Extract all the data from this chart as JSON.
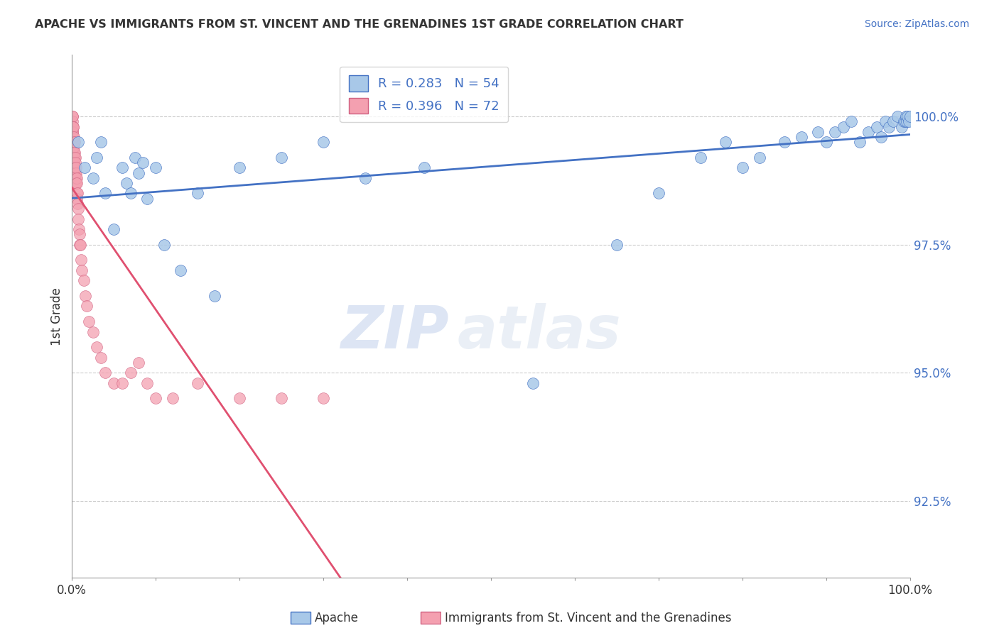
{
  "title": "APACHE VS IMMIGRANTS FROM ST. VINCENT AND THE GRENADINES 1ST GRADE CORRELATION CHART",
  "source": "Source: ZipAtlas.com",
  "ylabel": "1st Grade",
  "y_tick_labels": [
    "92.5%",
    "95.0%",
    "97.5%",
    "100.0%"
  ],
  "y_tick_values": [
    92.5,
    95.0,
    97.5,
    100.0
  ],
  "xlim": [
    0.0,
    100.0
  ],
  "ylim": [
    91.0,
    101.2
  ],
  "legend_apache_R": "R = 0.283",
  "legend_apache_N": "N = 54",
  "legend_svg_R": "R = 0.396",
  "legend_svg_N": "N = 72",
  "apache_color": "#a8c8e8",
  "svg_color": "#f4a0b0",
  "trendline_apache_color": "#4472c4",
  "trendline_svg_color": "#e05070",
  "legend_label_apache": "Apache",
  "legend_label_svg": "Immigrants from St. Vincent and the Grenadines",
  "watermark_zip": "ZIP",
  "watermark_atlas": "atlas",
  "apache_x": [
    0.8,
    1.5,
    2.5,
    3.0,
    3.5,
    4.0,
    5.0,
    6.0,
    6.5,
    7.0,
    7.5,
    8.0,
    8.5,
    9.0,
    10.0,
    11.0,
    13.0,
    15.0,
    17.0,
    20.0,
    25.0,
    30.0,
    35.0,
    42.0,
    55.0,
    65.0,
    70.0,
    75.0,
    78.0,
    80.0,
    82.0,
    85.0,
    87.0,
    89.0,
    90.0,
    91.0,
    92.0,
    93.0,
    94.0,
    95.0,
    96.0,
    96.5,
    97.0,
    97.5,
    98.0,
    98.5,
    99.0,
    99.2,
    99.4,
    99.5,
    99.6,
    99.7,
    99.8,
    100.0
  ],
  "apache_y": [
    99.5,
    99.0,
    98.8,
    99.2,
    99.5,
    98.5,
    97.8,
    99.0,
    98.7,
    98.5,
    99.2,
    98.9,
    99.1,
    98.4,
    99.0,
    97.5,
    97.0,
    98.5,
    96.5,
    99.0,
    99.2,
    99.5,
    98.8,
    99.0,
    94.8,
    97.5,
    98.5,
    99.2,
    99.5,
    99.0,
    99.2,
    99.5,
    99.6,
    99.7,
    99.5,
    99.7,
    99.8,
    99.9,
    99.5,
    99.7,
    99.8,
    99.6,
    99.9,
    99.8,
    99.9,
    100.0,
    99.8,
    99.9,
    99.9,
    100.0,
    99.9,
    100.0,
    99.9,
    100.0
  ],
  "svg_x": [
    0.05,
    0.05,
    0.08,
    0.08,
    0.08,
    0.1,
    0.1,
    0.1,
    0.12,
    0.12,
    0.15,
    0.15,
    0.15,
    0.18,
    0.18,
    0.2,
    0.2,
    0.2,
    0.22,
    0.22,
    0.25,
    0.25,
    0.25,
    0.28,
    0.28,
    0.3,
    0.3,
    0.35,
    0.35,
    0.35,
    0.38,
    0.4,
    0.4,
    0.42,
    0.45,
    0.45,
    0.48,
    0.5,
    0.5,
    0.55,
    0.55,
    0.6,
    0.6,
    0.65,
    0.7,
    0.75,
    0.8,
    0.85,
    0.9,
    0.95,
    1.0,
    1.1,
    1.2,
    1.4,
    1.6,
    1.8,
    2.0,
    2.5,
    3.0,
    3.5,
    4.0,
    5.0,
    6.0,
    7.0,
    8.0,
    9.0,
    10.0,
    12.0,
    15.0,
    20.0,
    25.0,
    30.0
  ],
  "svg_y": [
    100.0,
    99.8,
    99.9,
    99.7,
    99.5,
    100.0,
    99.8,
    99.5,
    99.7,
    99.3,
    99.8,
    99.5,
    99.2,
    99.6,
    99.3,
    99.8,
    99.5,
    99.1,
    99.5,
    99.2,
    99.6,
    99.3,
    99.0,
    99.4,
    99.1,
    99.5,
    99.2,
    99.3,
    99.0,
    98.8,
    99.2,
    99.0,
    98.7,
    98.9,
    99.1,
    98.8,
    98.9,
    99.0,
    98.7,
    98.8,
    98.5,
    98.7,
    98.4,
    98.5,
    98.3,
    98.2,
    98.0,
    97.8,
    97.7,
    97.5,
    97.5,
    97.2,
    97.0,
    96.8,
    96.5,
    96.3,
    96.0,
    95.8,
    95.5,
    95.3,
    95.0,
    94.8,
    94.8,
    95.0,
    95.2,
    94.8,
    94.5,
    94.5,
    94.8,
    94.5,
    94.5,
    94.5
  ]
}
